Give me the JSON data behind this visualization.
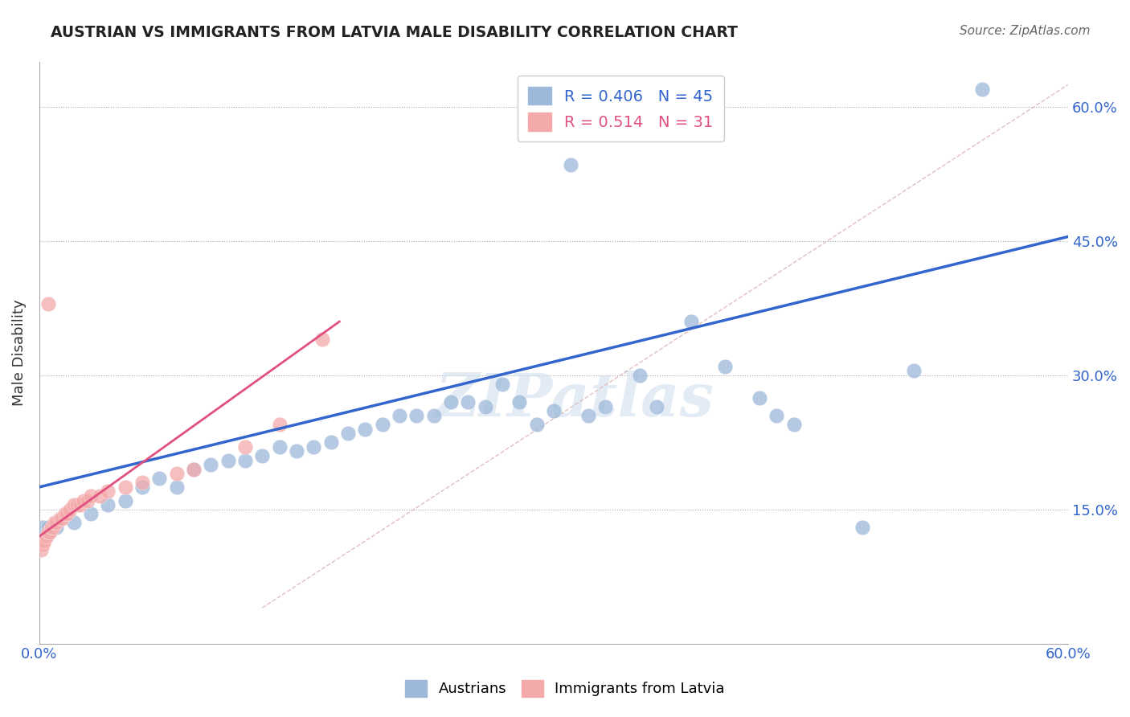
{
  "title": "AUSTRIAN VS IMMIGRANTS FROM LATVIA MALE DISABILITY CORRELATION CHART",
  "source": "Source: ZipAtlas.com",
  "ylabel_label": "Male Disability",
  "x_min": 0.0,
  "x_max": 0.6,
  "y_min": 0.0,
  "y_max": 0.65,
  "x_tick_vals": [
    0.0,
    0.15,
    0.3,
    0.45,
    0.6
  ],
  "x_tick_labels": [
    "0.0%",
    "",
    "",
    "",
    "60.0%"
  ],
  "y_tick_vals": [
    0.15,
    0.3,
    0.45,
    0.6
  ],
  "y_tick_labels": [
    "15.0%",
    "30.0%",
    "45.0%",
    "60.0%"
  ],
  "blue_R": "0.406",
  "blue_N": "45",
  "pink_R": "0.514",
  "pink_N": "31",
  "blue_color": "#9DB8D9",
  "pink_color": "#F4AAAA",
  "blue_line_color": "#3366CC",
  "pink_line_color": "#E05080",
  "diag_line_color": "#DDB8B8",
  "watermark": "ZIPatlas",
  "blue_scatter_x": [
    0.31,
    0.02,
    0.04,
    0.05,
    0.06,
    0.08,
    0.09,
    0.1,
    0.12,
    0.13,
    0.15,
    0.16,
    0.17,
    0.18,
    0.19,
    0.2,
    0.22,
    0.24,
    0.25,
    0.27,
    0.29,
    0.3,
    0.33,
    0.35,
    0.38,
    0.4,
    0.42,
    0.43,
    0.44,
    0.01,
    0.03,
    0.07,
    0.11,
    0.14,
    0.21,
    0.23,
    0.26,
    0.28,
    0.32,
    0.36,
    0.48,
    0.51,
    0.55,
    0.002,
    0.005
  ],
  "blue_scatter_y": [
    0.535,
    0.135,
    0.155,
    0.16,
    0.175,
    0.175,
    0.195,
    0.2,
    0.205,
    0.21,
    0.215,
    0.22,
    0.225,
    0.235,
    0.24,
    0.245,
    0.255,
    0.27,
    0.27,
    0.29,
    0.245,
    0.26,
    0.265,
    0.3,
    0.36,
    0.31,
    0.275,
    0.255,
    0.245,
    0.13,
    0.145,
    0.185,
    0.205,
    0.22,
    0.255,
    0.255,
    0.265,
    0.27,
    0.255,
    0.265,
    0.13,
    0.305,
    0.62,
    0.13,
    0.13
  ],
  "pink_scatter_x": [
    0.001,
    0.002,
    0.003,
    0.004,
    0.005,
    0.006,
    0.007,
    0.008,
    0.009,
    0.01,
    0.012,
    0.013,
    0.015,
    0.016,
    0.018,
    0.02,
    0.022,
    0.024,
    0.026,
    0.028,
    0.03,
    0.035,
    0.04,
    0.05,
    0.06,
    0.08,
    0.09,
    0.12,
    0.14,
    0.165,
    0.005
  ],
  "pink_scatter_y": [
    0.105,
    0.11,
    0.115,
    0.12,
    0.125,
    0.125,
    0.13,
    0.13,
    0.135,
    0.135,
    0.14,
    0.14,
    0.145,
    0.145,
    0.15,
    0.155,
    0.155,
    0.155,
    0.16,
    0.16,
    0.165,
    0.165,
    0.17,
    0.175,
    0.18,
    0.19,
    0.195,
    0.22,
    0.245,
    0.34,
    0.38
  ],
  "blue_line_x": [
    0.0,
    0.6
  ],
  "blue_line_y": [
    0.175,
    0.455
  ],
  "pink_line_x": [
    0.0,
    0.175
  ],
  "pink_line_y": [
    0.12,
    0.36
  ],
  "diag_line_x": [
    0.13,
    0.6
  ],
  "diag_line_y": [
    0.04,
    0.625
  ]
}
